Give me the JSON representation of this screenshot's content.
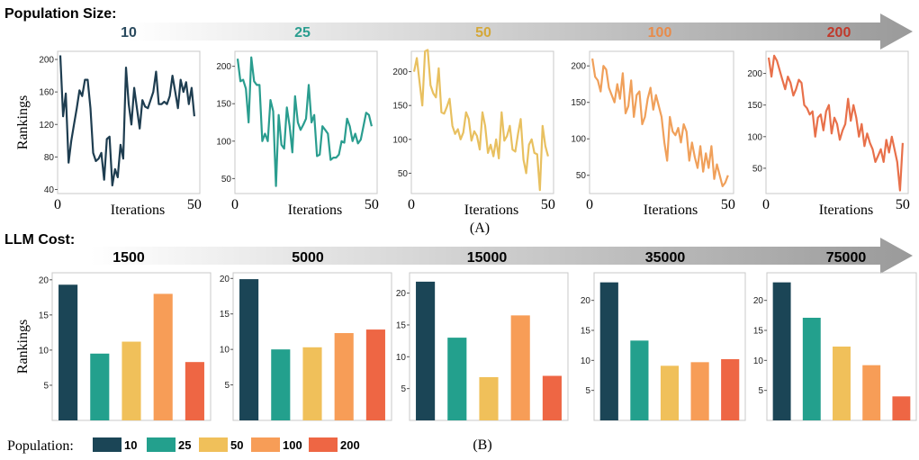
{
  "section_a": {
    "heading": "Population Size:",
    "arrow_labels": [
      {
        "text": "10",
        "color": "#2a4a5e"
      },
      {
        "text": "25",
        "color": "#2a9d8f"
      },
      {
        "text": "50",
        "color": "#d4a83a"
      },
      {
        "text": "100",
        "color": "#e88b4a"
      },
      {
        "text": "200",
        "color": "#c0392b"
      }
    ],
    "caption": "(A)"
  },
  "section_b": {
    "heading": "LLM Cost:",
    "arrow_labels": [
      {
        "text": "1500",
        "color": "#000000"
      },
      {
        "text": "5000",
        "color": "#000000"
      },
      {
        "text": "15000",
        "color": "#000000"
      },
      {
        "text": "35000",
        "color": "#000000"
      },
      {
        "text": "75000",
        "color": "#000000"
      }
    ],
    "caption": "(B)"
  },
  "legend": {
    "title": "Population:",
    "items": [
      {
        "label": "10",
        "color": "#1b4556"
      },
      {
        "label": "25",
        "color": "#23a08d"
      },
      {
        "label": "50",
        "color": "#f0c05a"
      },
      {
        "label": "100",
        "color": "#f79d57"
      },
      {
        "label": "200",
        "color": "#ee6644"
      }
    ]
  },
  "chart_data": [
    {
      "type": "line",
      "id": "line-pop-10",
      "color": "#1e3d50",
      "xlabel": "Iterations",
      "ylabel": "Rankings",
      "xlim": [
        0,
        52
      ],
      "ylim": [
        35,
        210
      ],
      "xticks": [
        0,
        50
      ],
      "yticks": [
        40,
        80,
        120,
        160,
        200
      ],
      "values": [
        205,
        130,
        158,
        73,
        100,
        120,
        140,
        162,
        155,
        175,
        175,
        140,
        85,
        75,
        78,
        85,
        52,
        102,
        105,
        45,
        65,
        55,
        95,
        78,
        190,
        145,
        120,
        165,
        140,
        115,
        150,
        142,
        140,
        150,
        160,
        185,
        145,
        145,
        148,
        145,
        155,
        180,
        160,
        140,
        175,
        160,
        172,
        145,
        165,
        130
      ]
    },
    {
      "type": "line",
      "id": "line-pop-25",
      "color": "#2a9d8f",
      "xlabel": "Iterations",
      "ylabel": "",
      "xlim": [
        0,
        52
      ],
      "ylim": [
        30,
        220
      ],
      "xticks": [
        0,
        50
      ],
      "yticks": [
        50,
        100,
        150,
        200
      ],
      "values": [
        210,
        180,
        182,
        170,
        125,
        212,
        180,
        175,
        175,
        100,
        110,
        100,
        155,
        140,
        40,
        135,
        95,
        90,
        145,
        120,
        85,
        160,
        125,
        115,
        122,
        130,
        175,
        125,
        135,
        80,
        82,
        120,
        115,
        110,
        75,
        78,
        78,
        82,
        100,
        98,
        130,
        120,
        100,
        110,
        97,
        102,
        120,
        138,
        135,
        120
      ]
    },
    {
      "type": "line",
      "id": "line-pop-50",
      "color": "#e8c060",
      "xlabel": "Iterations",
      "ylabel": "",
      "xlim": [
        0,
        52
      ],
      "ylim": [
        20,
        230
      ],
      "xticks": [
        0,
        50
      ],
      "yticks": [
        50,
        100,
        150,
        200
      ],
      "values": [
        200,
        220,
        185,
        150,
        230,
        232,
        180,
        168,
        162,
        205,
        140,
        138,
        148,
        160,
        120,
        108,
        115,
        100,
        110,
        140,
        130,
        98,
        112,
        105,
        85,
        140,
        120,
        80,
        92,
        75,
        100,
        72,
        140,
        98,
        105,
        120,
        85,
        82,
        108,
        130,
        70,
        50,
        92,
        100,
        80,
        78,
        25,
        120,
        90,
        75
      ]
    },
    {
      "type": "line",
      "id": "line-pop-100",
      "color": "#f0a05a",
      "xlabel": "Iterations",
      "ylabel": "",
      "xlim": [
        0,
        52
      ],
      "ylim": [
        25,
        220
      ],
      "xticks": [
        0,
        50
      ],
      "yticks": [
        50,
        100,
        150,
        200
      ],
      "values": [
        210,
        185,
        180,
        165,
        200,
        195,
        170,
        160,
        150,
        175,
        155,
        190,
        135,
        145,
        180,
        130,
        160,
        165,
        120,
        130,
        155,
        170,
        140,
        160,
        145,
        130,
        95,
        70,
        130,
        110,
        105,
        115,
        95,
        120,
        110,
        70,
        95,
        75,
        60,
        90,
        55,
        80,
        60,
        90,
        45,
        65,
        50,
        35,
        40,
        50
      ]
    },
    {
      "type": "line",
      "id": "line-pop-200",
      "color": "#e8704a",
      "xlabel": "Iterations",
      "ylabel": "",
      "xlim": [
        0,
        52
      ],
      "ylim": [
        10,
        235
      ],
      "xticks": [
        0,
        50
      ],
      "yticks": [
        50,
        100,
        150,
        200
      ],
      "values": [
        225,
        195,
        228,
        220,
        205,
        190,
        175,
        195,
        185,
        165,
        175,
        190,
        185,
        150,
        145,
        135,
        140,
        100,
        130,
        135,
        110,
        140,
        150,
        105,
        130,
        120,
        95,
        110,
        120,
        160,
        125,
        150,
        130,
        100,
        120,
        85,
        105,
        90,
        80,
        60,
        70,
        80,
        60,
        95,
        75,
        100,
        80,
        60,
        15,
        90
      ]
    },
    {
      "type": "bar",
      "id": "bar-cost-1500",
      "ylabel": "Rankings",
      "categories": [
        "10",
        "25",
        "50",
        "100",
        "200"
      ],
      "ylim": [
        0,
        21
      ],
      "yticks": [
        5,
        10,
        15,
        20
      ],
      "values": [
        19.3,
        9.5,
        11.2,
        18.0,
        8.3
      ],
      "colors": [
        "#1b4556",
        "#23a08d",
        "#f0c05a",
        "#f79d57",
        "#ee6644"
      ]
    },
    {
      "type": "bar",
      "id": "bar-cost-5000",
      "ylabel": "",
      "categories": [
        "10",
        "25",
        "50",
        "100",
        "200"
      ],
      "ylim": [
        0,
        20.8
      ],
      "yticks": [
        5,
        10,
        15,
        20
      ],
      "values": [
        19.9,
        10.0,
        10.3,
        12.3,
        12.8
      ],
      "colors": [
        "#1b4556",
        "#23a08d",
        "#f0c05a",
        "#f79d57",
        "#ee6644"
      ]
    },
    {
      "type": "bar",
      "id": "bar-cost-15000",
      "ylabel": "",
      "categories": [
        "10",
        "25",
        "50",
        "100",
        "200"
      ],
      "ylim": [
        0,
        23.2
      ],
      "yticks": [
        5,
        10,
        15,
        20
      ],
      "values": [
        21.8,
        13.0,
        6.8,
        16.5,
        7.0
      ],
      "colors": [
        "#1b4556",
        "#23a08d",
        "#f0c05a",
        "#f79d57",
        "#ee6644"
      ]
    },
    {
      "type": "bar",
      "id": "bar-cost-35000",
      "ylabel": "",
      "categories": [
        "10",
        "25",
        "50",
        "100",
        "200"
      ],
      "ylim": [
        0,
        24.6
      ],
      "yticks": [
        5,
        10,
        15,
        20
      ],
      "values": [
        23.0,
        13.3,
        9.1,
        9.7,
        10.2
      ],
      "colors": [
        "#1b4556",
        "#23a08d",
        "#f0c05a",
        "#f79d57",
        "#ee6644"
      ]
    },
    {
      "type": "bar",
      "id": "bar-cost-75000",
      "ylabel": "",
      "categories": [
        "10",
        "25",
        "50",
        "100",
        "200"
      ],
      "ylim": [
        0,
        24.6
      ],
      "yticks": [
        5,
        10,
        15,
        20
      ],
      "values": [
        23.0,
        17.1,
        12.3,
        9.2,
        4.0
      ],
      "colors": [
        "#1b4556",
        "#23a08d",
        "#f0c05a",
        "#f79d57",
        "#ee6644"
      ]
    }
  ]
}
